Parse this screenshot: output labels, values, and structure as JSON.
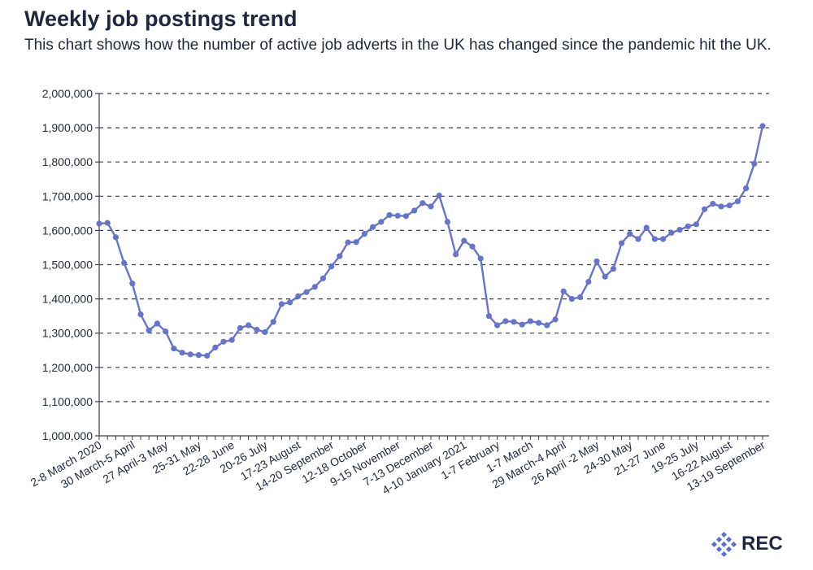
{
  "header": {
    "title": "Weekly job postings trend",
    "subtitle": "This chart shows how the number of active job adverts in the UK has changed since the pandemic hit the UK."
  },
  "logo": {
    "text": "REC",
    "color": "#5b6fd0"
  },
  "chart_data": {
    "type": "line",
    "title": "Weekly job postings trend",
    "subtitle": "This chart shows how the number of active job adverts in the UK has changed since the pandemic hit the UK.",
    "xlabel": "",
    "ylabel": "",
    "ylim": [
      1000000,
      2000000
    ],
    "yticks": [
      "1,000,000",
      "1,100,000",
      "1,200,000",
      "1,300,000",
      "1,400,000",
      "1,500,000",
      "1,600,000",
      "1,700,000",
      "1,800,000",
      "1,900,000",
      "2,000,000"
    ],
    "grid": true,
    "line_color": "#6674cc",
    "xtick_labels": [
      "2-8 March 2020",
      "30 March-5 April",
      "27 April-3 May",
      "25-31 May",
      "22-28 June",
      "20-26 July",
      "17-23 August",
      "14-20 September",
      "12-18 October",
      "9-15 November",
      "7-13 December",
      "4-10 January 2021",
      "1-7 February",
      "1-7 March",
      "29 March-4 April",
      "26 April -2 May",
      "24-30 May",
      "21-27 June",
      "19-25 July",
      "16-22 August",
      "13-19 September"
    ],
    "values": [
      1620000,
      1622000,
      1580000,
      1505000,
      1445000,
      1355000,
      1308000,
      1328000,
      1305000,
      1255000,
      1243000,
      1238000,
      1236000,
      1234000,
      1258000,
      1275000,
      1280000,
      1315000,
      1323000,
      1310000,
      1303000,
      1333000,
      1385000,
      1390000,
      1408000,
      1420000,
      1435000,
      1460000,
      1495000,
      1525000,
      1565000,
      1566000,
      1590000,
      1610000,
      1625000,
      1645000,
      1643000,
      1642000,
      1658000,
      1680000,
      1670000,
      1702000,
      1625000,
      1530000,
      1570000,
      1553000,
      1518000,
      1350000,
      1323000,
      1335000,
      1333000,
      1325000,
      1335000,
      1330000,
      1323000,
      1340000,
      1422000,
      1400000,
      1405000,
      1450000,
      1510000,
      1465000,
      1488000,
      1563000,
      1590000,
      1575000,
      1608000,
      1575000,
      1575000,
      1593000,
      1602000,
      1612000,
      1618000,
      1662000,
      1678000,
      1670000,
      1673000,
      1685000,
      1723000,
      1795000,
      1905000
    ]
  }
}
